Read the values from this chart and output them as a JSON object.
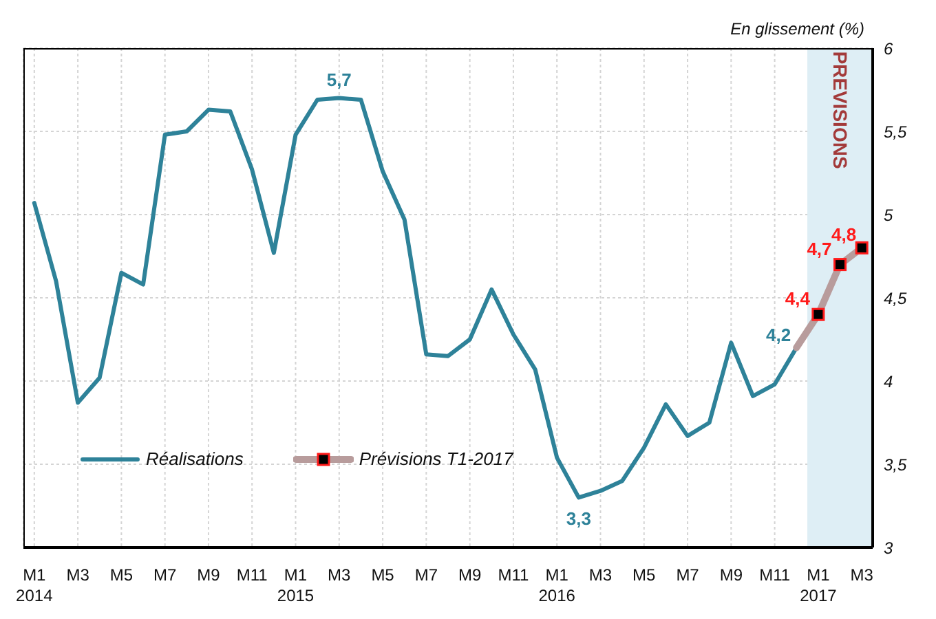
{
  "chart_data": {
    "type": "line",
    "ylabel": "En glissement (%)",
    "x": [
      "2014-01",
      "2014-02",
      "2014-03",
      "2014-04",
      "2014-05",
      "2014-06",
      "2014-07",
      "2014-08",
      "2014-09",
      "2014-10",
      "2014-11",
      "2014-12",
      "2015-01",
      "2015-02",
      "2015-03",
      "2015-04",
      "2015-05",
      "2015-06",
      "2015-07",
      "2015-08",
      "2015-09",
      "2015-10",
      "2015-11",
      "2015-12",
      "2016-01",
      "2016-02",
      "2016-03",
      "2016-04",
      "2016-05",
      "2016-06",
      "2016-07",
      "2016-08",
      "2016-09",
      "2016-10",
      "2016-11",
      "2016-12",
      "2017-01",
      "2017-02",
      "2017-03"
    ],
    "series": [
      {
        "name": "Réalisations",
        "color": "#2e8299",
        "marker": "none",
        "values": [
          5.07,
          4.6,
          3.87,
          4.02,
          4.65,
          4.58,
          5.48,
          5.5,
          5.63,
          5.62,
          5.27,
          4.77,
          5.48,
          5.69,
          5.7,
          5.69,
          5.26,
          4.97,
          4.16,
          4.15,
          4.25,
          4.55,
          4.28,
          4.07,
          3.54,
          3.3,
          3.34,
          3.4,
          3.6,
          3.86,
          3.67,
          3.75,
          4.23,
          3.91,
          3.98,
          4.2,
          null,
          null,
          null
        ],
        "value_labels": [
          null,
          null,
          null,
          null,
          null,
          null,
          null,
          null,
          null,
          null,
          null,
          null,
          null,
          null,
          "5,7",
          null,
          null,
          null,
          null,
          null,
          null,
          null,
          null,
          null,
          null,
          "3,3",
          null,
          null,
          null,
          null,
          null,
          null,
          null,
          null,
          null,
          "4,2",
          null,
          null,
          null
        ]
      },
      {
        "name": "Prévisions T1-2017",
        "color": "#b89c9c",
        "marker": "square",
        "colors": [
          null,
          null,
          null,
          null,
          null,
          null,
          null,
          null,
          null,
          null,
          null,
          null,
          null,
          null,
          null,
          null,
          null,
          null,
          null,
          null,
          null,
          null,
          null,
          null,
          null,
          null,
          null,
          null,
          null,
          null,
          null,
          null,
          null,
          null,
          null,
          null,
          "#ff1a1a",
          "#ff1a1a",
          "#ff1a1a"
        ],
        "values": [
          null,
          null,
          null,
          null,
          null,
          null,
          null,
          null,
          null,
          null,
          null,
          null,
          null,
          null,
          null,
          null,
          null,
          null,
          null,
          null,
          null,
          null,
          null,
          null,
          null,
          null,
          null,
          null,
          null,
          null,
          null,
          null,
          null,
          null,
          null,
          4.2,
          4.4,
          4.7,
          4.8
        ],
        "value_labels": [
          null,
          null,
          null,
          null,
          null,
          null,
          null,
          null,
          null,
          null,
          null,
          null,
          null,
          null,
          null,
          null,
          null,
          null,
          null,
          null,
          null,
          null,
          null,
          null,
          null,
          null,
          null,
          null,
          null,
          null,
          null,
          null,
          null,
          null,
          null,
          null,
          "4,4",
          "4,7",
          "4,8"
        ]
      }
    ],
    "xlim": [
      "2013-12-16",
      "2017-03-16"
    ],
    "xticks": [
      {
        "value": "2014-01",
        "label": "M1 2014"
      },
      {
        "value": "2014-03",
        "label": "M3"
      },
      {
        "value": "2014-05",
        "label": "M5"
      },
      {
        "value": "2014-07",
        "label": "M7"
      },
      {
        "value": "2014-09",
        "label": "M9"
      },
      {
        "value": "2014-11",
        "label": "M11"
      },
      {
        "value": "2015-01",
        "label": "M1 2015"
      },
      {
        "value": "2015-03",
        "label": "M3"
      },
      {
        "value": "2015-05",
        "label": "M5"
      },
      {
        "value": "2015-07",
        "label": "M7"
      },
      {
        "value": "2015-09",
        "label": "M9"
      },
      {
        "value": "2015-11",
        "label": "M11"
      },
      {
        "value": "2016-01",
        "label": "M1 2016"
      },
      {
        "value": "2016-03",
        "label": "M3"
      },
      {
        "value": "2016-05",
        "label": "M5"
      },
      {
        "value": "2016-07",
        "label": "M7"
      },
      {
        "value": "2016-09",
        "label": "M9"
      },
      {
        "value": "2016-11",
        "label": "M11"
      },
      {
        "value": "2017-01",
        "label": "M1 2017"
      },
      {
        "value": "2017-03",
        "label": "M3"
      }
    ],
    "ylim": [
      3,
      6
    ],
    "yticks": [
      3,
      {
        "value": 3.5,
        "label": "3,5"
      },
      4,
      {
        "value": 4.5,
        "label": "4,5"
      },
      5,
      {
        "value": 5.5,
        "label": "5,5"
      },
      6
    ],
    "bands": [
      {
        "axis": "x",
        "from": "2016-12-16",
        "to": "2017-03-16",
        "label": "PREVISIONS",
        "color": "#deeef5"
      }
    ],
    "grid": true,
    "legend": "bottom left",
    "line_style": "solid"
  }
}
